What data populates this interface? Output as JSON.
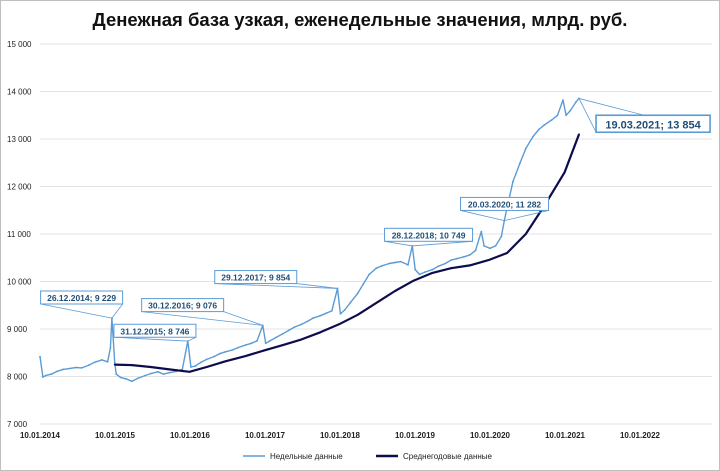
{
  "chart_data": {
    "type": "line",
    "title": "Денежная база узкая, еженедельные значения, млрд. руб.",
    "xlabel": "",
    "ylabel": "",
    "ylim": [
      7000,
      15000
    ],
    "y_ticks": [
      "7 000",
      "8 000",
      "9 000",
      "10 000",
      "11 000",
      "12 000",
      "13 000",
      "14 000",
      "15 000"
    ],
    "x_ticks": [
      "10.01.2014",
      "10.01.2015",
      "10.01.2016",
      "10.01.2017",
      "10.01.2018",
      "10.01.2019",
      "10.01.2020",
      "10.01.2021",
      "10.01.2022"
    ],
    "grid": "horizontal",
    "legend_position": "bottom",
    "series": [
      {
        "name": "Недельные данные",
        "color": "#5b9bd5",
        "points": [
          [
            "2014-01-10",
            8420
          ],
          [
            "2014-01-24",
            7990
          ],
          [
            "2014-02-07",
            8020
          ],
          [
            "2014-03-07",
            8050
          ],
          [
            "2014-04-04",
            8110
          ],
          [
            "2014-05-02",
            8150
          ],
          [
            "2014-06-06",
            8170
          ],
          [
            "2014-07-04",
            8190
          ],
          [
            "2014-08-01",
            8180
          ],
          [
            "2014-09-05",
            8240
          ],
          [
            "2014-10-03",
            8300
          ],
          [
            "2014-11-07",
            8350
          ],
          [
            "2014-12-05",
            8310
          ],
          [
            "2014-12-19",
            8600
          ],
          [
            "2014-12-26",
            9229
          ],
          [
            "2015-01-09",
            8300
          ],
          [
            "2015-01-16",
            8050
          ],
          [
            "2015-02-06",
            7980
          ],
          [
            "2015-03-06",
            7950
          ],
          [
            "2015-04-03",
            7900
          ],
          [
            "2015-05-01",
            7960
          ],
          [
            "2015-06-05",
            8020
          ],
          [
            "2015-07-03",
            8060
          ],
          [
            "2015-08-07",
            8100
          ],
          [
            "2015-09-04",
            8050
          ],
          [
            "2015-10-02",
            8080
          ],
          [
            "2015-11-06",
            8110
          ],
          [
            "2015-12-04",
            8150
          ],
          [
            "2015-12-31",
            8746
          ],
          [
            "2016-01-15",
            8200
          ],
          [
            "2016-02-05",
            8220
          ],
          [
            "2016-03-04",
            8300
          ],
          [
            "2016-04-01",
            8360
          ],
          [
            "2016-05-06",
            8420
          ],
          [
            "2016-06-03",
            8480
          ],
          [
            "2016-07-01",
            8520
          ],
          [
            "2016-08-05",
            8560
          ],
          [
            "2016-09-02",
            8610
          ],
          [
            "2016-10-07",
            8660
          ],
          [
            "2016-11-04",
            8700
          ],
          [
            "2016-12-02",
            8750
          ],
          [
            "2016-12-30",
            9076
          ],
          [
            "2017-01-13",
            8700
          ],
          [
            "2017-02-03",
            8750
          ],
          [
            "2017-03-03",
            8820
          ],
          [
            "2017-04-07",
            8900
          ],
          [
            "2017-05-05",
            8970
          ],
          [
            "2017-06-02",
            9040
          ],
          [
            "2017-07-07",
            9100
          ],
          [
            "2017-08-04",
            9160
          ],
          [
            "2017-09-01",
            9230
          ],
          [
            "2017-10-06",
            9280
          ],
          [
            "2017-11-03",
            9330
          ],
          [
            "2017-12-01",
            9380
          ],
          [
            "2017-12-29",
            9854
          ],
          [
            "2018-01-12",
            9320
          ],
          [
            "2018-02-02",
            9400
          ],
          [
            "2018-03-02",
            9560
          ],
          [
            "2018-04-06",
            9750
          ],
          [
            "2018-05-04",
            9950
          ],
          [
            "2018-06-01",
            10150
          ],
          [
            "2018-07-06",
            10280
          ],
          [
            "2018-08-03",
            10330
          ],
          [
            "2018-09-07",
            10380
          ],
          [
            "2018-10-05",
            10400
          ],
          [
            "2018-11-02",
            10420
          ],
          [
            "2018-12-07",
            10350
          ],
          [
            "2018-12-28",
            10749
          ],
          [
            "2019-01-11",
            10250
          ],
          [
            "2019-02-01",
            10150
          ],
          [
            "2019-03-01",
            10200
          ],
          [
            "2019-04-05",
            10250
          ],
          [
            "2019-05-03",
            10320
          ],
          [
            "2019-06-07",
            10380
          ],
          [
            "2019-07-05",
            10450
          ],
          [
            "2019-08-02",
            10480
          ],
          [
            "2019-09-06",
            10520
          ],
          [
            "2019-10-04",
            10560
          ],
          [
            "2019-11-01",
            10650
          ],
          [
            "2019-11-29",
            11050
          ],
          [
            "2019-12-13",
            10750
          ],
          [
            "2020-01-10",
            10700
          ],
          [
            "2020-02-07",
            10750
          ],
          [
            "2020-03-06",
            10950
          ],
          [
            "2020-03-20",
            11282
          ],
          [
            "2020-04-10",
            11700
          ],
          [
            "2020-05-01",
            12100
          ],
          [
            "2020-06-05",
            12500
          ],
          [
            "2020-07-03",
            12800
          ],
          [
            "2020-08-07",
            13050
          ],
          [
            "2020-09-04",
            13200
          ],
          [
            "2020-10-02",
            13300
          ],
          [
            "2020-11-06",
            13400
          ],
          [
            "2020-12-04",
            13500
          ],
          [
            "2020-12-31",
            13820
          ],
          [
            "2021-01-15",
            13500
          ],
          [
            "2021-02-05",
            13600
          ],
          [
            "2021-03-05",
            13780
          ],
          [
            "2021-03-19",
            13854
          ]
        ]
      },
      {
        "name": "Среднегодовые данные",
        "color": "#0d0d4d",
        "points": [
          [
            "2015-01-09",
            8250
          ],
          [
            "2015-04-03",
            8240
          ],
          [
            "2015-07-03",
            8200
          ],
          [
            "2015-10-02",
            8150
          ],
          [
            "2016-01-08",
            8100
          ],
          [
            "2016-04-01",
            8200
          ],
          [
            "2016-07-01",
            8320
          ],
          [
            "2016-10-07",
            8430
          ],
          [
            "2017-01-06",
            8550
          ],
          [
            "2017-04-07",
            8660
          ],
          [
            "2017-07-07",
            8780
          ],
          [
            "2017-10-06",
            8930
          ],
          [
            "2018-01-05",
            9100
          ],
          [
            "2018-04-06",
            9300
          ],
          [
            "2018-07-06",
            9550
          ],
          [
            "2018-10-05",
            9800
          ],
          [
            "2019-01-04",
            10020
          ],
          [
            "2019-04-05",
            10180
          ],
          [
            "2019-07-05",
            10280
          ],
          [
            "2019-10-04",
            10340
          ],
          [
            "2020-01-03",
            10450
          ],
          [
            "2020-04-03",
            10600
          ],
          [
            "2020-07-03",
            11000
          ],
          [
            "2020-10-02",
            11600
          ],
          [
            "2021-01-08",
            12300
          ],
          [
            "2021-03-19",
            13100
          ]
        ]
      }
    ],
    "annotations": [
      {
        "date": "2014-12-26",
        "value": 9229,
        "text": "26.12.2014; 9 229",
        "label_date": "2014-01-13",
        "label_value": 9800,
        "big": false
      },
      {
        "date": "2015-12-31",
        "value": 8746,
        "text": "31.12.2015; 8 746",
        "label_date": "2015-01-05",
        "label_value": 9100,
        "big": false
      },
      {
        "date": "2016-12-30",
        "value": 9076,
        "text": "30.12.2016; 9 076",
        "label_date": "2015-05-20",
        "label_value": 9640,
        "big": false
      },
      {
        "date": "2017-12-29",
        "value": 9854,
        "text": "29.12.2017; 9 854",
        "label_date": "2016-05-10",
        "label_value": 10230,
        "big": false
      },
      {
        "date": "2018-12-28",
        "value": 10749,
        "text": "28.12.2018; 10 749",
        "label_date": "2018-08-15",
        "label_value": 11120,
        "big": false
      },
      {
        "date": "2020-03-20",
        "value": 11282,
        "text": "20.03.2020; 11 282",
        "label_date": "2019-08-20",
        "label_value": 11770,
        "big": false
      },
      {
        "date": "2021-03-19",
        "value": 13854,
        "text": "19.03.2021; 13 854",
        "label_date": "2021-06-10",
        "label_value": 13500,
        "big": true
      }
    ]
  }
}
